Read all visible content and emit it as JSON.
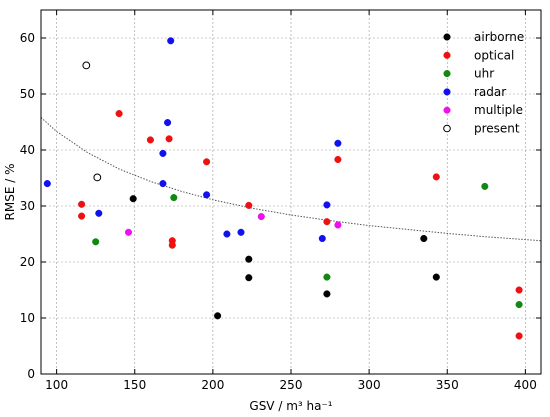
{
  "chart_data": {
    "type": "scatter",
    "title": "",
    "xlabel": "GSV / m³ ha⁻¹",
    "ylabel": "RMSE / %",
    "xlim": [
      90,
      410
    ],
    "ylim": [
      0,
      65
    ],
    "xticks": [
      100,
      150,
      200,
      250,
      300,
      350,
      400
    ],
    "yticks": [
      0,
      10,
      20,
      30,
      40,
      50,
      60
    ],
    "grid": true,
    "legend_position": "top-right",
    "series": [
      {
        "name": "airborne",
        "color": "#000000",
        "marker": "filled-circle",
        "points": [
          [
            149,
            31.3
          ],
          [
            203,
            10.4
          ],
          [
            223,
            20.5
          ],
          [
            223,
            17.2
          ],
          [
            273,
            14.3
          ],
          [
            335,
            24.2
          ],
          [
            343,
            17.3
          ]
        ]
      },
      {
        "name": "optical",
        "color": "#ee1111",
        "marker": "filled-circle",
        "points": [
          [
            116,
            30.3
          ],
          [
            116,
            28.2
          ],
          [
            140,
            46.5
          ],
          [
            160,
            41.8
          ],
          [
            172,
            42.0
          ],
          [
            174,
            23.8
          ],
          [
            174,
            23.0
          ],
          [
            196,
            37.9
          ],
          [
            223,
            30.1
          ],
          [
            273,
            27.2
          ],
          [
            280,
            38.3
          ],
          [
            343,
            35.2
          ],
          [
            396,
            15.0
          ],
          [
            396,
            6.8
          ]
        ]
      },
      {
        "name": "uhr",
        "color": "#118811",
        "marker": "filled-circle",
        "points": [
          [
            125,
            23.6
          ],
          [
            175,
            31.5
          ],
          [
            273,
            17.3
          ],
          [
            374,
            33.5
          ],
          [
            396,
            12.4
          ]
        ]
      },
      {
        "name": "radar",
        "color": "#1111ee",
        "marker": "filled-circle",
        "points": [
          [
            94,
            34.0
          ],
          [
            127,
            28.7
          ],
          [
            168,
            39.4
          ],
          [
            168,
            34.0
          ],
          [
            171,
            44.9
          ],
          [
            173,
            59.5
          ],
          [
            196,
            32.0
          ],
          [
            209,
            25.0
          ],
          [
            218,
            25.3
          ],
          [
            270,
            24.2
          ],
          [
            273,
            30.2
          ],
          [
            280,
            41.2
          ]
        ]
      },
      {
        "name": "multiple",
        "color": "#ee11ee",
        "marker": "filled-circle",
        "points": [
          [
            146,
            25.3
          ],
          [
            231,
            28.1
          ],
          [
            280,
            26.6
          ]
        ]
      },
      {
        "name": "present",
        "color": "#000000",
        "marker": "open-circle",
        "points": [
          [
            119,
            55.1
          ],
          [
            126,
            35.1
          ]
        ]
      }
    ],
    "trend_line": {
      "color": "#555555",
      "style": "dotted",
      "points": [
        [
          90,
          45.8
        ],
        [
          100,
          43.3
        ],
        [
          120,
          39.5
        ],
        [
          140,
          36.6
        ],
        [
          160,
          34.4
        ],
        [
          180,
          32.6
        ],
        [
          200,
          31.1
        ],
        [
          225,
          29.6
        ],
        [
          250,
          28.4
        ],
        [
          275,
          27.4
        ],
        [
          300,
          26.5
        ],
        [
          325,
          25.8
        ],
        [
          350,
          25.1
        ],
        [
          375,
          24.5
        ],
        [
          400,
          24.0
        ],
        [
          410,
          23.8
        ]
      ]
    }
  }
}
